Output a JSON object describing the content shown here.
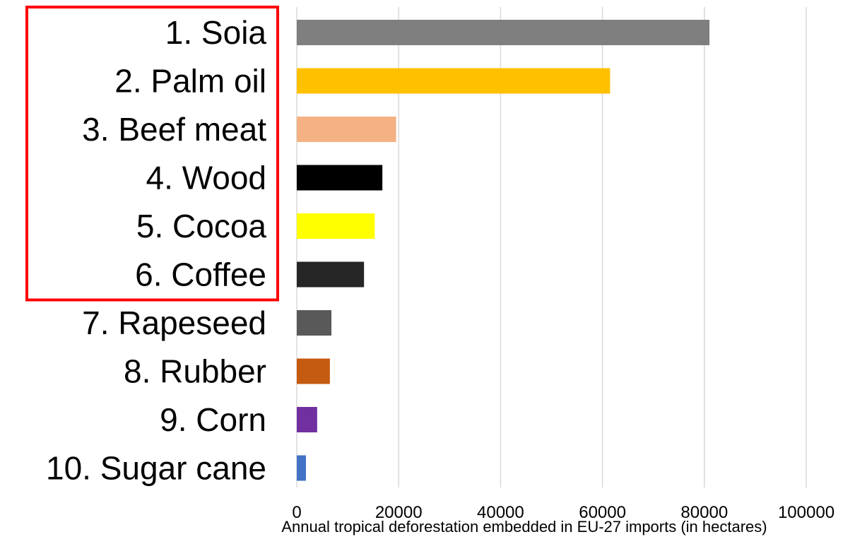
{
  "chart_data": {
    "type": "bar",
    "orientation": "horizontal",
    "categories": [
      "1. Soia",
      "2. Palm oil",
      "3. Beef meat",
      "4. Wood",
      "5. Cocoa",
      "6. Coffee",
      "7. Rapeseed",
      "8. Rubber",
      "9. Corn",
      "10. Sugar cane"
    ],
    "values": [
      81000,
      61500,
      19500,
      16800,
      15300,
      13200,
      6800,
      6500,
      4000,
      1800
    ],
    "bar_colors": [
      "#7f7f7f",
      "#ffc000",
      "#f4b183",
      "#000000",
      "#ffff00",
      "#262626",
      "#595959",
      "#c55a11",
      "#7030a0",
      "#4472c4"
    ],
    "title": "",
    "xlabel": "Annual tropical deforestation embedded in EU-27 imports (in hectares)",
    "ylabel": "",
    "xlim": [
      0,
      100000
    ],
    "xticks": [
      0,
      20000,
      40000,
      60000,
      80000,
      100000
    ],
    "xtick_labels": [
      "0",
      "20000",
      "40000",
      "60000",
      "80000",
      "100000"
    ],
    "grid": "vertical",
    "legend": "none",
    "highlight": {
      "categories": [
        "1. Soia",
        "2. Palm oil",
        "3. Beef meat",
        "4. Wood",
        "5. Cocoa",
        "6. Coffee"
      ],
      "color": "#ff0000"
    }
  }
}
